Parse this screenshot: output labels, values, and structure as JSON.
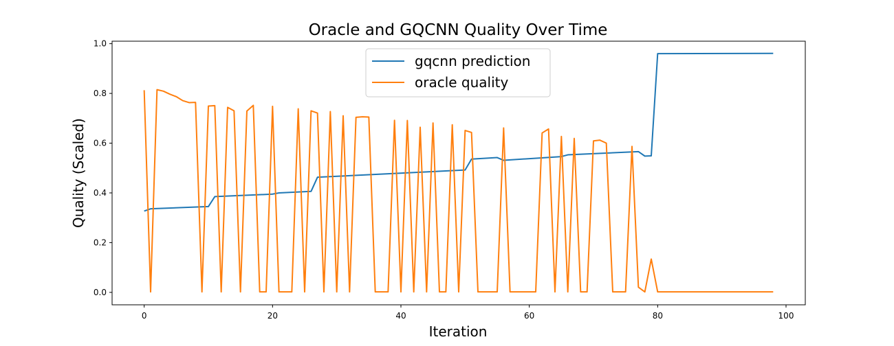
{
  "chart_data": {
    "type": "line",
    "title": "Oracle and GQCNN Quality Over Time",
    "xlabel": "Iteration",
    "ylabel": "Quality (Scaled)",
    "xlim": [
      -5,
      103
    ],
    "ylim": [
      -0.05,
      1.01
    ],
    "xticks": [
      0,
      20,
      40,
      60,
      80,
      100
    ],
    "yticks": [
      0.0,
      0.2,
      0.4,
      0.6,
      0.8,
      1.0
    ],
    "xtick_labels": [
      "0",
      "20",
      "40",
      "60",
      "80",
      "100"
    ],
    "ytick_labels": [
      "0.0",
      "0.2",
      "0.4",
      "0.6",
      "0.8",
      "1.0"
    ],
    "grid": false,
    "legend_position": "top-center",
    "series": [
      {
        "name": "gqcnn prediction",
        "color": "#1f77b4",
        "x": [
          0,
          1,
          10,
          11,
          20,
          21,
          26,
          27,
          50,
          51,
          55,
          56,
          65,
          66,
          77,
          78,
          79,
          80,
          98
        ],
        "y": [
          0.327,
          0.336,
          0.345,
          0.385,
          0.395,
          0.4,
          0.406,
          0.463,
          0.492,
          0.536,
          0.542,
          0.531,
          0.546,
          0.553,
          0.566,
          0.548,
          0.549,
          0.96,
          0.961
        ]
      },
      {
        "name": "oracle quality",
        "color": "#ff7f0e",
        "x": [
          0,
          1,
          2,
          3,
          4,
          5,
          6,
          7,
          8,
          9,
          10,
          11,
          12,
          13,
          14,
          15,
          16,
          17,
          18,
          19,
          20,
          21,
          22,
          23,
          24,
          25,
          26,
          27,
          28,
          29,
          30,
          31,
          32,
          33,
          34,
          35,
          36,
          37,
          38,
          39,
          40,
          41,
          42,
          43,
          44,
          45,
          46,
          47,
          48,
          49,
          50,
          51,
          52,
          53,
          54,
          55,
          56,
          57,
          58,
          59,
          60,
          61,
          62,
          63,
          64,
          65,
          66,
          67,
          68,
          69,
          70,
          71,
          72,
          73,
          74,
          75,
          76,
          77,
          78,
          79,
          80,
          98
        ],
        "y": [
          0.813,
          0.002,
          0.815,
          0.809,
          0.797,
          0.787,
          0.771,
          0.763,
          0.764,
          0.002,
          0.749,
          0.751,
          0.002,
          0.744,
          0.73,
          0.002,
          0.729,
          0.752,
          0.002,
          0.002,
          0.748,
          0.002,
          0.002,
          0.002,
          0.738,
          0.002,
          0.73,
          0.721,
          0.002,
          0.727,
          0.002,
          0.71,
          0.002,
          0.704,
          0.706,
          0.705,
          0.002,
          0.002,
          0.002,
          0.692,
          0.002,
          0.691,
          0.002,
          0.664,
          0.002,
          0.681,
          0.002,
          0.002,
          0.674,
          0.002,
          0.651,
          0.643,
          0.002,
          0.002,
          0.002,
          0.002,
          0.661,
          0.002,
          0.002,
          0.002,
          0.002,
          0.002,
          0.641,
          0.657,
          0.002,
          0.627,
          0.002,
          0.619,
          0.002,
          0.002,
          0.609,
          0.612,
          0.6,
          0.002,
          0.002,
          0.002,
          0.587,
          0.021,
          0.002,
          0.134,
          0.002,
          0.002
        ]
      }
    ]
  }
}
